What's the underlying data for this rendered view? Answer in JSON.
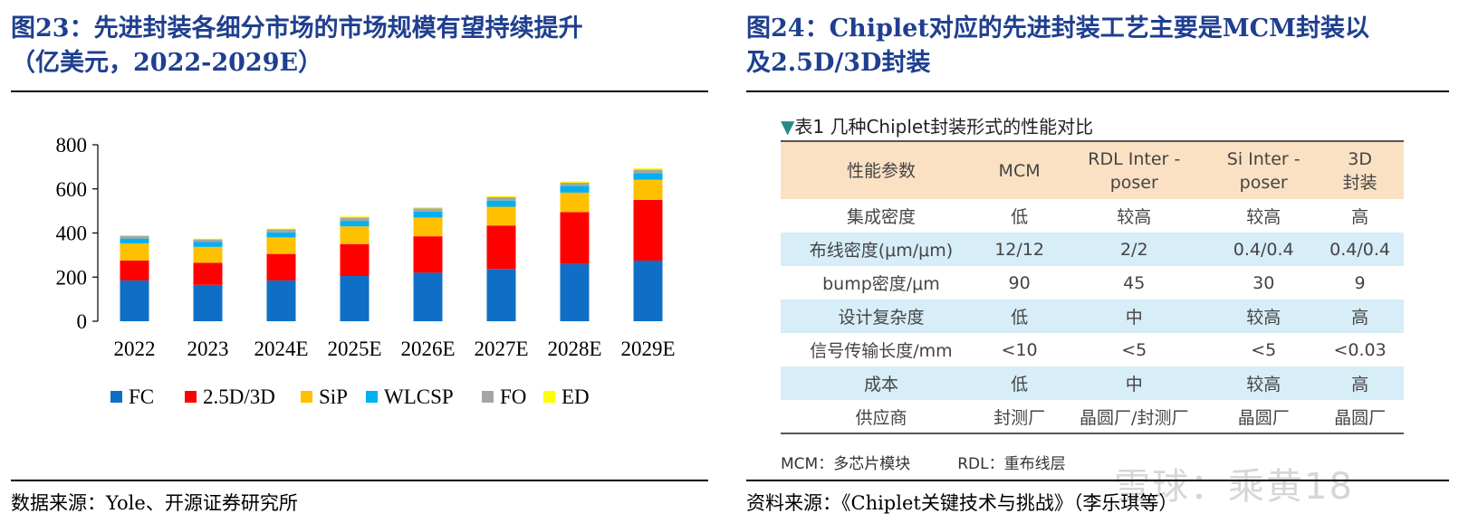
{
  "left_panel": {
    "title_line1": "图23：先进封装各细分市场的市场规模有望持续提升",
    "title_line2": "（亿美元，2022-2029E）",
    "source": "数据来源：Yole、开源证券研究所"
  },
  "chart_data": {
    "type": "bar",
    "stacked": true,
    "categories": [
      "2022",
      "2023",
      "2024E",
      "2025E",
      "2026E",
      "2027E",
      "2028E",
      "2029E"
    ],
    "series": [
      {
        "name": "FC",
        "color": "#0f6fc6",
        "values": [
          185,
          165,
          185,
          205,
          220,
          237,
          260,
          275
        ]
      },
      {
        "name": "2.5D/3D",
        "color": "#ff0000",
        "values": [
          90,
          100,
          120,
          145,
          165,
          197,
          235,
          275
        ]
      },
      {
        "name": "SiP",
        "color": "#ffc000",
        "values": [
          78,
          72,
          75,
          80,
          85,
          85,
          88,
          92
        ]
      },
      {
        "name": "WLCSP",
        "color": "#00b0f0",
        "values": [
          22,
          22,
          23,
          25,
          27,
          28,
          30,
          30
        ]
      },
      {
        "name": "FO",
        "color": "#a5a5a5",
        "values": [
          12,
          12,
          14,
          15,
          15,
          15,
          15,
          15
        ]
      },
      {
        "name": "ED",
        "color": "#ffff00",
        "values": [
          3,
          3,
          3,
          5,
          5,
          5,
          6,
          6
        ]
      }
    ],
    "yticks": [
      0,
      200,
      400,
      600,
      800
    ],
    "ylim": [
      0,
      800
    ],
    "legend_position": "bottom",
    "title": "",
    "xlabel": "",
    "ylabel": ""
  },
  "right_panel": {
    "title_line1": "图24：Chiplet对应的先进封装工艺主要是MCM封装以",
    "title_line2": "及2.5D/3D封装",
    "source": "资料来源：《Chiplet关键技术与挑战》（李乐琪等）",
    "table_caption_marker": "▼",
    "table_caption": "表1 几种Chiplet封装形式的性能对比",
    "headers": [
      "性能参数",
      "MCM",
      "RDL Inter -\nposer",
      "Si Inter -\nposer",
      "3D\n封装"
    ],
    "rows": [
      [
        "集成密度",
        "低",
        "较高",
        "较高",
        "高"
      ],
      [
        "布线密度(μm/μm)",
        "12/12",
        "2/2",
        "0.4/0.4",
        "0.4/0.4"
      ],
      [
        "bump密度/μm",
        "90",
        "45",
        "30",
        "9"
      ],
      [
        "设计复杂度",
        "低",
        "中",
        "较高",
        "高"
      ],
      [
        "信号传输长度/mm",
        "<10",
        "<5",
        "<5",
        "<0.03"
      ],
      [
        "成本",
        "低",
        "中",
        "较高",
        "高"
      ],
      [
        "供应商",
        "封测厂",
        "晶圆厂/封测厂",
        "晶圆厂",
        "晶圆厂"
      ]
    ],
    "note_mcm": "MCM：多芯片模块",
    "note_rdl": "RDL：重布线层"
  },
  "watermark": "雪球：乘黄18"
}
